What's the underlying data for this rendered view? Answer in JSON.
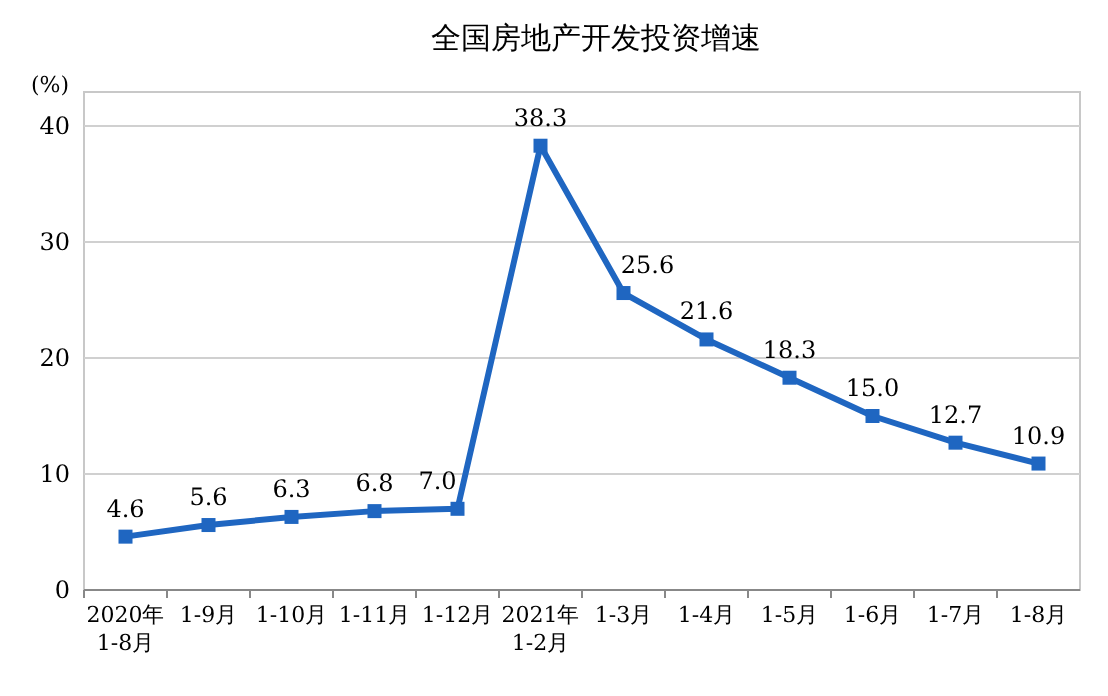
{
  "chart_data": {
    "type": "line",
    "title": "全国房地产开发投资增速",
    "ylabel": "(%)",
    "categories": [
      "2020年\n1-8月",
      "1-9月",
      "1-10月",
      "1-11月",
      "1-12月",
      "2021年\n1-2月",
      "1-3月",
      "1-4月",
      "1-5月",
      "1-6月",
      "1-7月",
      "1-8月"
    ],
    "series": [
      {
        "color": "#1f66c1",
        "values": [
          4.6,
          5.6,
          6.3,
          6.8,
          7.0,
          38.3,
          25.6,
          21.6,
          18.3,
          15.0,
          12.7,
          10.9
        ],
        "value_labels": [
          "4.6",
          "5.6",
          "6.3",
          "6.8",
          "7.0",
          "38.3",
          "25.6",
          "21.6",
          "18.3",
          "15.0",
          "12.7",
          "10.9"
        ]
      }
    ],
    "ylim": [
      0,
      40
    ],
    "yticks": [
      0,
      10,
      20,
      30,
      40
    ],
    "grid": "y",
    "marker": "square",
    "line_style": "solid"
  }
}
